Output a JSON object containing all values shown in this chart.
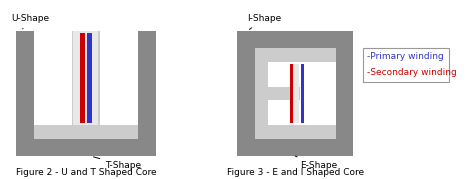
{
  "fig_width": 4.74,
  "fig_height": 1.79,
  "bg_color": "#ffffff",
  "dark_gray": "#888888",
  "light_gray": "#cccccc",
  "lighter_gray": "#e8e8e8",
  "white": "#ffffff",
  "blue": "#3333cc",
  "red": "#cc0000",
  "fig1_label": "Figure 2 - U and T Shaped Core",
  "fig2_label": "Figure 3 - E and I Shaped Core",
  "label_ushape": "U-Shape",
  "label_tshape": "T-Shape",
  "label_ishape": "I-Shape",
  "label_eshape": "E-Shape",
  "legend_primary": "-Primary winding",
  "legend_secondary": "-Secondary winding",
  "legend_primary_color": "#3333cc",
  "legend_secondary_color": "#cc0000"
}
